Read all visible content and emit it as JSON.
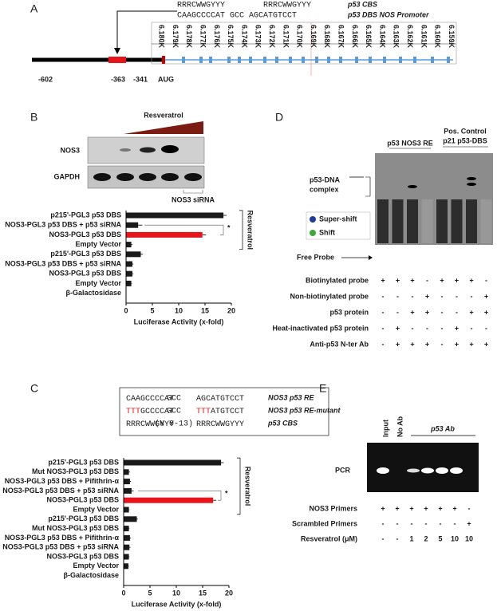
{
  "panel_a": {
    "letter": "A",
    "motif_1": "RRRCWWGYYY",
    "motif_2": "RRRCWWGYYY",
    "sequence": "CAAGCCCCAT  GCC  AGCATGTCCT",
    "cbs_label": "p53 CBS",
    "promoter_label": "p53 DBS NOS Promoter",
    "positions": [
      "-602",
      "-363",
      "-341",
      "AUG"
    ],
    "ruler_labels": [
      "6.180K",
      "6.179K",
      "6.178K",
      "6.177K",
      "6.176K",
      "6.175K",
      "6.174K",
      "6.173K",
      "6.172K",
      "6.171K",
      "6.170K",
      "6.169K",
      "6.168K",
      "6.167K",
      "6.166K",
      "6.165K",
      "6.164K",
      "6.163K",
      "6.162K",
      "6.161K",
      "6.160K",
      "6.159K"
    ]
  },
  "panel_b": {
    "letter": "B",
    "treatment": "Resveratrol",
    "blot_labels": [
      "NOS3",
      "GAPDH"
    ],
    "sirna_label": "NOS3 siRNA"
  },
  "panel_c": {
    "letter": "C",
    "sequences": [
      {
        "parts": [
          {
            "text": "CAAGCCCCAT",
            "mut": false
          }
        ],
        "spacer": "GCC",
        "parts2": [
          {
            "text": "AGCATGTCCT",
            "mut": false
          }
        ],
        "label": "NOS3 p53 RE"
      },
      {
        "parts": [
          {
            "text": "TTT",
            "mut": true
          },
          {
            "text": "GCCCCAT",
            "mut": false
          }
        ],
        "spacer": "GCC",
        "parts2": [
          {
            "text": "TTT",
            "mut": true
          },
          {
            "text": "ATGTCCT",
            "mut": false
          }
        ],
        "label": "NOS3 p53 RE-mutant"
      },
      {
        "parts": [
          {
            "text": "RRRCWWGYYY",
            "mut": false
          }
        ],
        "spacer": "(N 0-13)",
        "parts2": [
          {
            "text": "RRRCWWGYYY",
            "mut": false
          }
        ],
        "label": "p53 CBS"
      }
    ]
  },
  "panel_d": {
    "letter": "D",
    "group_1": "p53 NOS3 RE",
    "group_2": [
      "Pos. Control",
      "p21 p53-DBS"
    ],
    "complex_label": [
      "p53-DNA",
      "complex"
    ],
    "legend": [
      "Super-shift",
      "Shift"
    ],
    "free_probe": "Free Probe",
    "rows": [
      {
        "label": "Biotinylated probe",
        "cells": [
          "+",
          "+",
          "+",
          "-",
          "+",
          "+",
          "+",
          "-"
        ]
      },
      {
        "label": "Non-biotinylated probe",
        "cells": [
          "-",
          "-",
          "-",
          "+",
          "-",
          "-",
          "-",
          "+"
        ]
      },
      {
        "label": "p53 protein",
        "cells": [
          "-",
          "-",
          "+",
          "+",
          "-",
          "-",
          "+",
          "+"
        ]
      },
      {
        "label": "Heat-inactivated p53 protein",
        "cells": [
          "-",
          "+",
          "-",
          "-",
          "-",
          "+",
          "-",
          "-"
        ]
      },
      {
        "label": "Anti-p53 N-ter Ab",
        "cells": [
          "-",
          "+",
          "+",
          "+",
          "-",
          "+",
          "+",
          "+"
        ]
      }
    ]
  },
  "panel_e": {
    "letter": "E",
    "lanes": [
      "Input",
      "No Ab"
    ],
    "group": "p53 Ab",
    "gel_label": "PCR",
    "rows": [
      {
        "label": "NOS3 Primers",
        "cells": [
          "+",
          "+",
          "+",
          "+",
          "+",
          "+",
          "-"
        ]
      },
      {
        "label": "Scrambled Primers",
        "cells": [
          "-",
          "-",
          "-",
          "-",
          "-",
          "-",
          "+"
        ]
      },
      {
        "label": "Resveratrol (μM)",
        "cells": [
          "-",
          "-",
          "1",
          "2",
          "5",
          "10",
          "10"
        ]
      }
    ]
  },
  "chart_data": [
    {
      "type": "hbar",
      "categories": [
        "p215'-PGL3 p53 DBS",
        "NOS3-PGL3 p53 DBS + p53 siRNA",
        "NOS3-PGL3 p53 DBS",
        "Empty Vector",
        "p215'-PGL3 p53 DBS",
        "NOS3-PGL3 p53 DBS + p53 siRNA",
        "NOS3-PGL3 p53 DBS",
        "Empty Vector",
        "β-Galactosidase"
      ],
      "values": [
        18.5,
        2.3,
        14.5,
        1,
        2.8,
        1.2,
        1.2,
        1,
        0
      ],
      "errors": [
        0.6,
        0.8,
        0.7,
        0.2,
        0.4,
        0.2,
        0.2,
        0.1,
        0
      ],
      "colors": [
        "#1a1a1a",
        "#1a1a1a",
        "#e8141b",
        "#1a1a1a",
        "#1a1a1a",
        "#1a1a1a",
        "#1a1a1a",
        "#1a1a1a",
        "#1a1a1a"
      ],
      "xlim": [
        0,
        20
      ],
      "xticks": [
        0,
        5,
        10,
        15,
        20
      ],
      "xlabel": "Luciferase Activity (x-fold)",
      "annotation": "*",
      "bracket_label": "Resveratrol",
      "bracket_rows": 4
    },
    {
      "type": "hbar",
      "categories": [
        "p215'-PGL3 p53 DBS",
        "Mut NOS3-PGL3 p53 DBS",
        "NOS3-PGL3 p53 DBS + Pifithrin-α",
        "NOS3-PGL3 p53 DBS + p53 siRNA",
        "NOS3-PGL3 p53 DBS",
        "Empty Vector",
        "p215'-PGL3 p53 DBS",
        "Mut NOS3-PGL3 p53 DBS",
        "NOS3-PGL3 p53 DBS + Pifithrin-α",
        "NOS3-PGL3 p53 DBS + p53 siRNA",
        "NOS3-PGL3 p53 DBS",
        "Empty Vector",
        "β-Galactosidase"
      ],
      "values": [
        18.5,
        1,
        1.2,
        1.5,
        17,
        1,
        2.5,
        1,
        1.2,
        1.1,
        1,
        0.9,
        0
      ],
      "errors": [
        0.5,
        0.2,
        0.2,
        0.4,
        0.6,
        0.1,
        0.2,
        0.1,
        0.2,
        0.2,
        0.1,
        0.1,
        0
      ],
      "colors": [
        "#1a1a1a",
        "#1a1a1a",
        "#1a1a1a",
        "#1a1a1a",
        "#e8141b",
        "#1a1a1a",
        "#1a1a1a",
        "#1a1a1a",
        "#1a1a1a",
        "#1a1a1a",
        "#1a1a1a",
        "#1a1a1a",
        "#1a1a1a"
      ],
      "xlim": [
        0,
        20
      ],
      "xticks": [
        0,
        5,
        10,
        15,
        20
      ],
      "xlabel": "Luciferase Activity (x-fold)",
      "annotation": "*",
      "bracket_label": "Resveratrol",
      "bracket_rows": 6
    }
  ]
}
